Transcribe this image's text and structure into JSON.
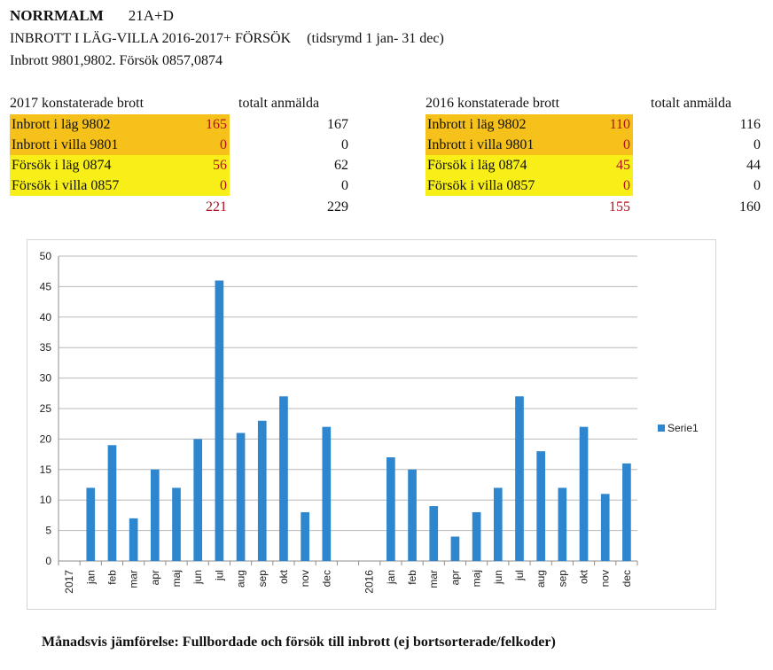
{
  "header": {
    "title": "NORRMALM",
    "area_code": "21A+D",
    "subtitle": "INBROTT I LÄG-VILLA 2016-2017+ FÖRSÖK",
    "period": "(tidsrymd 1 jan- 31 dec)",
    "codes": "Inbrott 9801,9802.  Försök 0857,0874"
  },
  "tables": [
    {
      "caption": "2017 konstaterade brott",
      "total_header": "totalt anmälda",
      "rows": [
        {
          "label": "Inbrott i läg 9802",
          "value": "165",
          "total": "167",
          "color": "#f5c11a"
        },
        {
          "label": "Inbrott i villa 9801",
          "value": "0",
          "total": "0",
          "color": "#f5c11a"
        },
        {
          "label": "Försök i läg 0874",
          "value": "56",
          "total": "62",
          "color": "#f8ef18"
        },
        {
          "label": "Försök i villa 0857",
          "value": "0",
          "total": "0",
          "color": "#f8ef18"
        }
      ],
      "sum_value": "221",
      "sum_total": "229"
    },
    {
      "caption": "2016 konstaterade brott",
      "total_header": "totalt anmälda",
      "rows": [
        {
          "label": "Inbrott i läg 9802",
          "value": "110",
          "total": "116",
          "color": "#f5c11a"
        },
        {
          "label": "Inbrott i villa 9801",
          "value": "0",
          "total": "0",
          "color": "#f5c11a"
        },
        {
          "label": "Försök i läg 0874",
          "value": "45",
          "total": "44",
          "color": "#f8ef18"
        },
        {
          "label": "Försök i villa 0857",
          "value": "0",
          "total": "0",
          "color": "#f8ef18"
        }
      ],
      "sum_value": "155",
      "sum_total": "160"
    }
  ],
  "chart_data": {
    "type": "bar",
    "categories": [
      "2017",
      "jan",
      "feb",
      "mar",
      "apr",
      "maj",
      "jun",
      "jul",
      "aug",
      "sep",
      "okt",
      "nov",
      "dec",
      "",
      "2016",
      "jan",
      "feb",
      "mar",
      "apr",
      "maj",
      "jun",
      "jul",
      "aug",
      "sep",
      "okt",
      "nov",
      "dec"
    ],
    "series": [
      {
        "name": "Serie1",
        "color": "#2e86cf",
        "values": [
          null,
          12,
          19,
          7,
          15,
          12,
          20,
          46,
          21,
          23,
          27,
          8,
          22,
          null,
          null,
          17,
          15,
          9,
          4,
          8,
          12,
          27,
          18,
          12,
          22,
          11,
          16
        ]
      }
    ],
    "ylim": [
      0,
      50
    ],
    "yticks": [
      0,
      5,
      10,
      15,
      20,
      25,
      30,
      35,
      40,
      45,
      50
    ],
    "grid": true,
    "legend": "right"
  },
  "footer": {
    "caption": "Månadsvis jämförelse: Fullbordade och försök till inbrott (ej bortsorterade/felkoder)"
  }
}
